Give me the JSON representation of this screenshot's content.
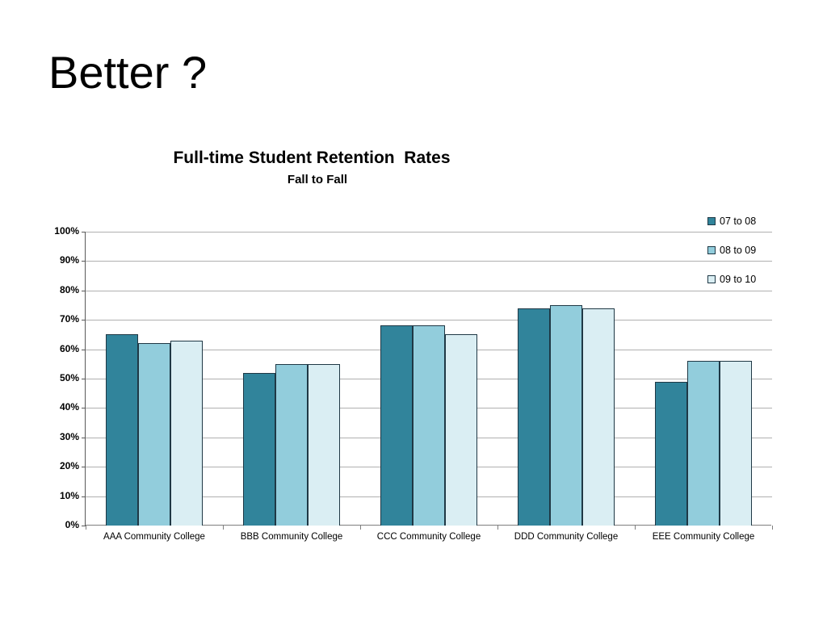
{
  "slide": {
    "title": "Better ?"
  },
  "chart": {
    "title": "Full-time Student Retention  Rates",
    "subtitle": "Fall to Fall"
  },
  "chart_data": {
    "type": "bar",
    "title": "Full-time Student Retention  Rates",
    "subtitle": "Fall to Fall",
    "categories": [
      "AAA Community College",
      "BBB Community College",
      "CCC Community College",
      "DDD Community College",
      "EEE Community College"
    ],
    "series": [
      {
        "name": "07 to 08",
        "color": "#31849B",
        "values": [
          65,
          52,
          68,
          74,
          49
        ]
      },
      {
        "name": "08 to 09",
        "color": "#92CDDC",
        "values": [
          62,
          55,
          68,
          75,
          56
        ]
      },
      {
        "name": "09 to 10",
        "color": "#DAEEF3",
        "values": [
          63,
          55,
          65,
          74,
          56
        ]
      }
    ],
    "ylim": [
      0,
      100
    ],
    "ytick_step": 10,
    "ytick_suffix": "%",
    "grid": true,
    "legend_position": "top-right",
    "colors": {
      "bar_border": "#1F3845",
      "gridline": "#B0B0B0",
      "y_axis": "#595959",
      "x_axis": "#7F7F7F",
      "text": "#000000"
    }
  }
}
